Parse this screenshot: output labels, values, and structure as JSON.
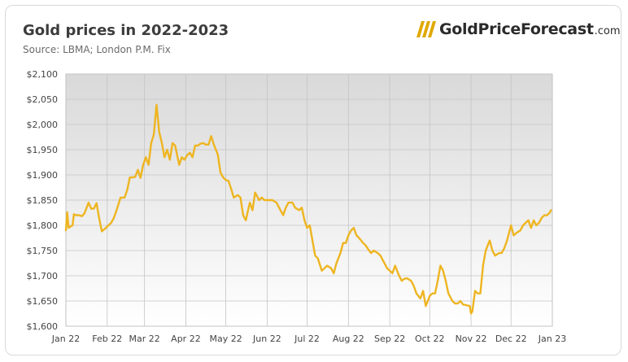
{
  "header": {
    "title": "Gold prices in 2022-2023",
    "subtitle": "Source: LBMA; London P.M. Fix"
  },
  "logo": {
    "name": "GoldPriceForecast",
    "domain": ".com",
    "accent": "#e0a800"
  },
  "chart_data": {
    "type": "line",
    "title": "Gold prices in 2022-2023",
    "subtitle": "Source: LBMA; London P.M. Fix",
    "xlabel": "",
    "ylabel": "",
    "ylim": [
      1600,
      2100
    ],
    "yticks": [
      1600,
      1650,
      1700,
      1750,
      1800,
      1850,
      1900,
      1950,
      2000,
      2050,
      2100
    ],
    "ytick_labels": [
      "$1,600",
      "$1,650",
      "$1,700",
      "$1,750",
      "$1,800",
      "$1,850",
      "$1,900",
      "$1,950",
      "$2,000",
      "$2,050",
      "$2,100"
    ],
    "xlim": [
      "2022-01-01",
      "2023-01-01"
    ],
    "xticks": [
      "2022-01-01",
      "2022-02-01",
      "2022-03-01",
      "2022-04-01",
      "2022-05-01",
      "2022-06-01",
      "2022-07-01",
      "2022-08-01",
      "2022-09-01",
      "2022-10-01",
      "2022-11-01",
      "2022-12-01",
      "2023-01-01"
    ],
    "xtick_labels": [
      "Jan 22",
      "Feb 22",
      "Mar 22",
      "Apr 22",
      "May 22",
      "Jun 22",
      "Jul 22",
      "Aug 22",
      "Sep 22",
      "Oct 22",
      "Nov 22",
      "Dec 22",
      "Jan 23"
    ],
    "grid": true,
    "legend": "none",
    "series": [
      {
        "color": "#eeb521",
        "x": [
          "2022-01-01",
          "2022-01-02",
          "2022-01-03",
          "2022-01-04",
          "2022-01-06",
          "2022-01-07",
          "2022-01-09",
          "2022-01-11",
          "2022-01-13",
          "2022-01-15",
          "2022-01-18",
          "2022-01-20",
          "2022-01-22",
          "2022-01-24",
          "2022-01-26",
          "2022-01-28",
          "2022-01-31",
          "2022-02-02",
          "2022-02-04",
          "2022-02-06",
          "2022-02-08",
          "2022-02-11",
          "2022-02-14",
          "2022-02-16",
          "2022-02-18",
          "2022-02-20",
          "2022-02-22",
          "2022-02-24",
          "2022-02-26",
          "2022-02-28",
          "2022-03-02",
          "2022-03-04",
          "2022-03-06",
          "2022-03-08",
          "2022-03-10",
          "2022-03-12",
          "2022-03-14",
          "2022-03-16",
          "2022-03-18",
          "2022-03-20",
          "2022-03-22",
          "2022-03-24",
          "2022-03-27",
          "2022-03-29",
          "2022-03-31",
          "2022-04-02",
          "2022-04-04",
          "2022-04-06",
          "2022-04-08",
          "2022-04-10",
          "2022-04-12",
          "2022-04-14",
          "2022-04-16",
          "2022-04-18",
          "2022-04-20",
          "2022-04-22",
          "2022-04-25",
          "2022-04-27",
          "2022-04-29",
          "2022-05-01",
          "2022-05-03",
          "2022-05-05",
          "2022-05-07",
          "2022-05-10",
          "2022-05-12",
          "2022-05-14",
          "2022-05-16",
          "2022-05-19",
          "2022-05-21",
          "2022-05-23",
          "2022-05-26",
          "2022-05-28",
          "2022-05-30",
          "2022-06-02",
          "2022-06-05",
          "2022-06-08",
          "2022-06-10",
          "2022-06-13",
          "2022-06-15",
          "2022-06-17",
          "2022-06-20",
          "2022-06-22",
          "2022-06-25",
          "2022-06-27",
          "2022-06-29",
          "2022-07-01",
          "2022-07-03",
          "2022-07-05",
          "2022-07-07",
          "2022-07-09",
          "2022-07-12",
          "2022-07-14",
          "2022-07-16",
          "2022-07-19",
          "2022-07-21",
          "2022-07-23",
          "2022-07-26",
          "2022-07-28",
          "2022-07-30",
          "2022-08-01",
          "2022-08-03",
          "2022-08-05",
          "2022-08-07",
          "2022-08-09",
          "2022-08-12",
          "2022-08-14",
          "2022-08-16",
          "2022-08-18",
          "2022-08-20",
          "2022-08-23",
          "2022-08-25",
          "2022-08-27",
          "2022-08-30",
          "2022-09-01",
          "2022-09-03",
          "2022-09-05",
          "2022-09-08",
          "2022-09-10",
          "2022-09-12",
          "2022-09-14",
          "2022-09-17",
          "2022-09-19",
          "2022-09-21",
          "2022-09-24",
          "2022-09-26",
          "2022-09-28",
          "2022-10-01",
          "2022-10-03",
          "2022-10-05",
          "2022-10-07",
          "2022-10-09",
          "2022-10-11",
          "2022-10-13",
          "2022-10-15",
          "2022-10-18",
          "2022-10-20",
          "2022-10-22",
          "2022-10-24",
          "2022-10-26",
          "2022-10-28",
          "2022-10-31",
          "2022-11-01",
          "2022-11-02",
          "2022-11-04",
          "2022-11-06",
          "2022-11-08",
          "2022-11-10",
          "2022-11-12",
          "2022-11-15",
          "2022-11-17",
          "2022-11-19",
          "2022-11-22",
          "2022-11-24",
          "2022-11-26",
          "2022-11-28",
          "2022-12-01",
          "2022-12-03",
          "2022-12-05",
          "2022-12-08",
          "2022-12-10",
          "2022-12-12",
          "2022-12-14",
          "2022-12-16",
          "2022-12-18",
          "2022-12-20",
          "2022-12-22",
          "2022-12-24",
          "2022-12-26",
          "2022-12-28",
          "2022-12-30",
          "2022-12-31"
        ],
        "y": [
          1790,
          1826,
          1795,
          1797,
          1800,
          1822,
          1820,
          1820,
          1818,
          1824,
          1845,
          1833,
          1833,
          1844,
          1813,
          1788,
          1795,
          1800,
          1805,
          1815,
          1830,
          1855,
          1855,
          1870,
          1895,
          1895,
          1896,
          1910,
          1894,
          1920,
          1935,
          1920,
          1963,
          1980,
          2039,
          1985,
          1963,
          1935,
          1950,
          1930,
          1963,
          1958,
          1920,
          1935,
          1930,
          1939,
          1944,
          1935,
          1958,
          1958,
          1962,
          1963,
          1960,
          1960,
          1977,
          1960,
          1940,
          1905,
          1895,
          1890,
          1888,
          1872,
          1855,
          1860,
          1855,
          1820,
          1810,
          1845,
          1830,
          1865,
          1850,
          1855,
          1850,
          1850,
          1850,
          1845,
          1835,
          1820,
          1835,
          1845,
          1845,
          1835,
          1830,
          1835,
          1810,
          1795,
          1800,
          1770,
          1740,
          1735,
          1710,
          1715,
          1720,
          1715,
          1705,
          1725,
          1745,
          1765,
          1765,
          1780,
          1790,
          1795,
          1780,
          1775,
          1765,
          1760,
          1752,
          1745,
          1750,
          1745,
          1740,
          1730,
          1715,
          1710,
          1705,
          1720,
          1700,
          1690,
          1694,
          1695,
          1690,
          1680,
          1665,
          1655,
          1670,
          1640,
          1660,
          1665,
          1665,
          1690,
          1720,
          1710,
          1690,
          1665,
          1650,
          1645,
          1645,
          1650,
          1643,
          1642,
          1640,
          1625,
          1630,
          1670,
          1665,
          1665,
          1720,
          1750,
          1770,
          1750,
          1740,
          1745,
          1745,
          1755,
          1770,
          1800,
          1780,
          1785,
          1790,
          1800,
          1805,
          1810,
          1795,
          1810,
          1800,
          1805,
          1815,
          1820,
          1820,
          1825,
          1830
        ]
      }
    ]
  }
}
